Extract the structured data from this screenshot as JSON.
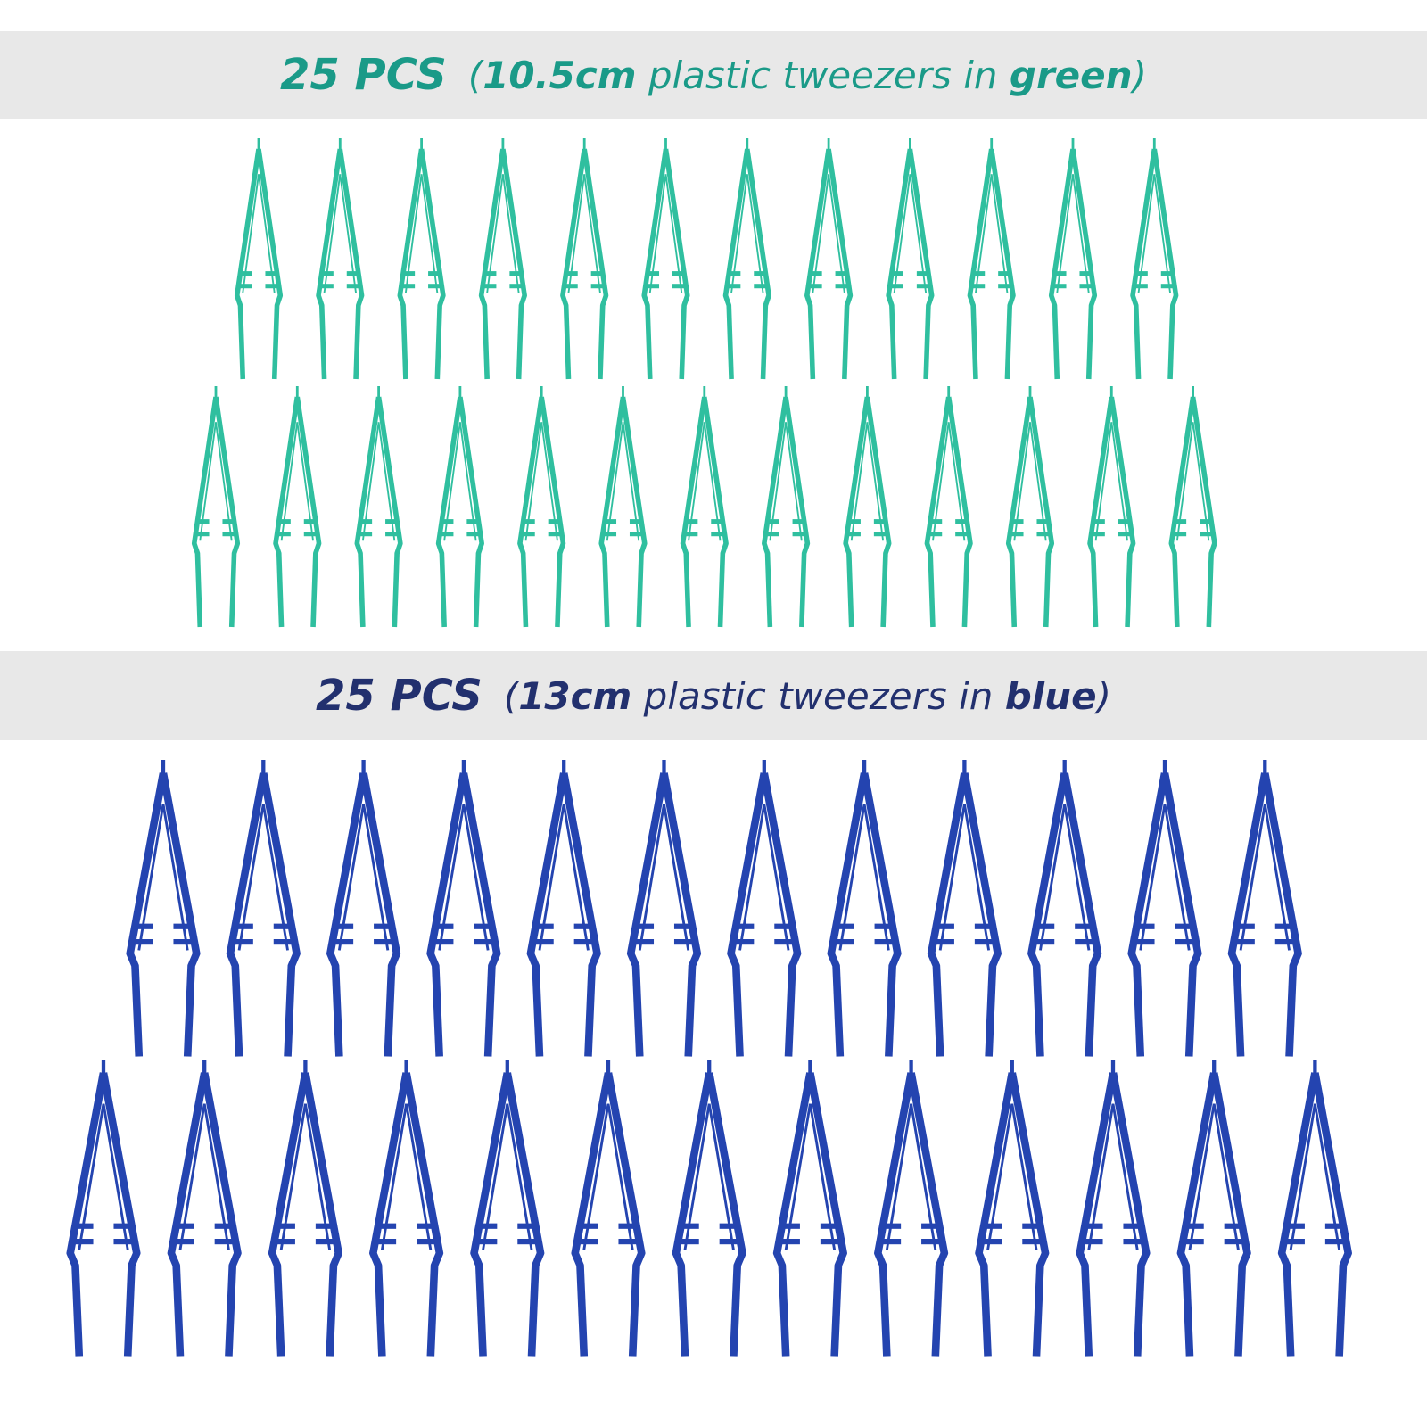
{
  "sections": [
    {
      "heading": {
        "count": "25 PCS",
        "open": "(",
        "size": "10.5cm",
        "middle": " plastic tweezers in ",
        "color": "green",
        "close": ")"
      }
    },
    {
      "heading": {
        "count": "25 PCS",
        "open": "(",
        "size": "13cm",
        "middle": " plastic tweezers in ",
        "color": "blue",
        "close": ")"
      }
    }
  ]
}
